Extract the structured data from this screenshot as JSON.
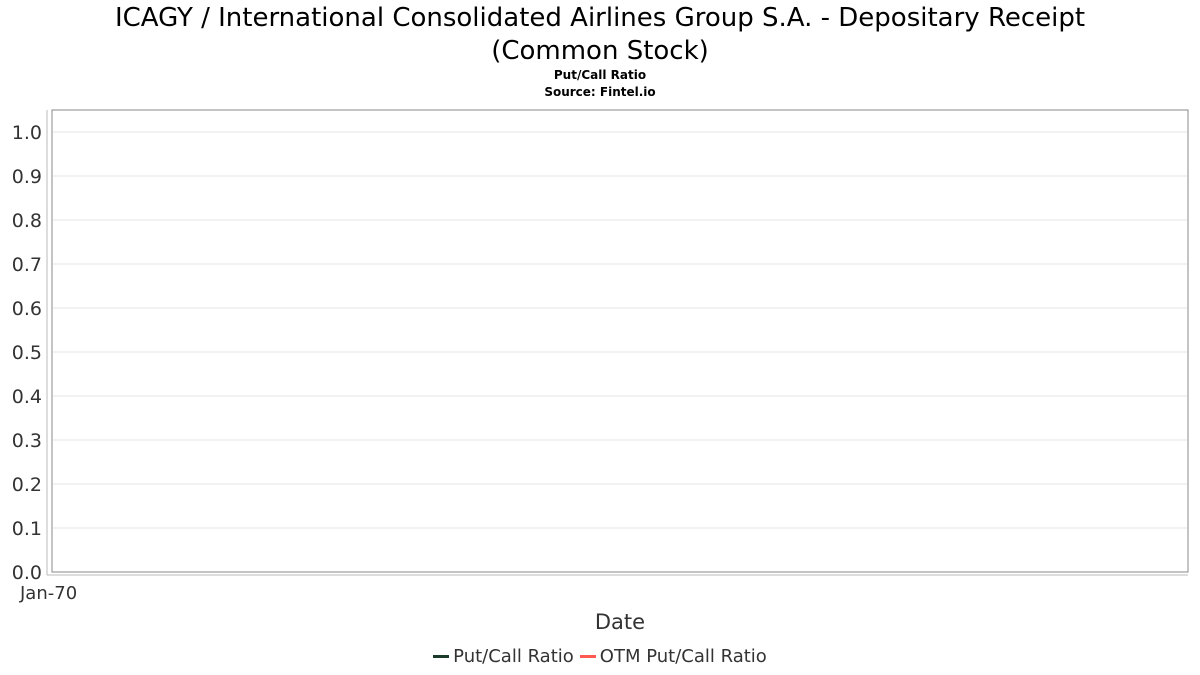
{
  "chart_data": {
    "type": "line",
    "title": "ICAGY / International Consolidated Airlines Group S.A. - Depositary Receipt (Common Stock)",
    "subtitle": "Put/Call Ratio",
    "source": "Source: Fintel.io",
    "xlabel": "Date",
    "ylabel": "",
    "x_tick_labels": [
      "Jan-70"
    ],
    "y_ticks": [
      0.0,
      0.1,
      0.2,
      0.3,
      0.4,
      0.5,
      0.6,
      0.7,
      0.8,
      0.9,
      1.0
    ],
    "ylim": [
      0,
      1.05
    ],
    "grid": true,
    "legend_position": "bottom",
    "series": [
      {
        "name": "Put/Call Ratio",
        "color": "#1a3a2a",
        "values": []
      },
      {
        "name": "OTM Put/Call Ratio",
        "color": "#ff5a4f",
        "values": []
      }
    ]
  }
}
